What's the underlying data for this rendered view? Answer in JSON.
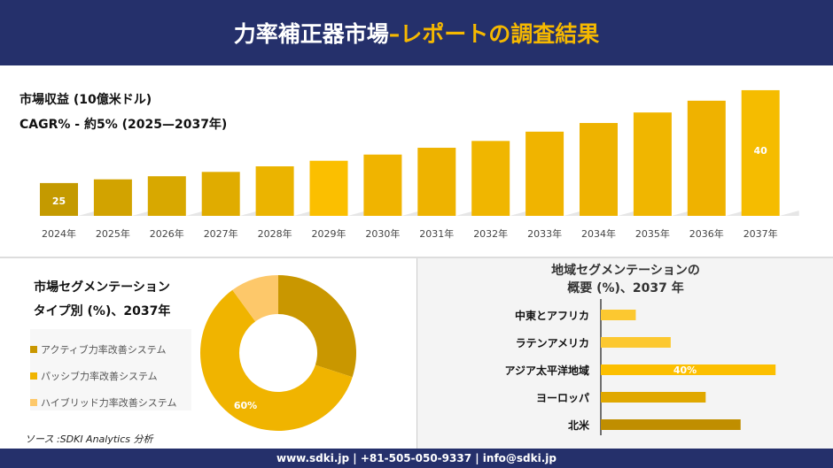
{
  "header": {
    "title_white": "力率補正器市場",
    "title_yellow": "–レポートの調査結果"
  },
  "market": {
    "line1": "市場収益 (10億米ドル)",
    "line2": "CAGR% - 約5% (2025—2037年)"
  },
  "chart_data": [
    {
      "type": "bar",
      "categories": [
        "2024年",
        "2025年",
        "2026年",
        "2027年",
        "2028年",
        "2029年",
        "2030年",
        "2031年",
        "2032年",
        "2033年",
        "2034年",
        "2035年",
        "2036年",
        "2037年"
      ],
      "values": [
        25,
        25.6,
        26.1,
        26.8,
        27.7,
        28.6,
        29.6,
        30.7,
        31.8,
        33.3,
        34.7,
        36.4,
        38.3,
        40
      ],
      "data_labels": {
        "0": "25",
        "13": "40"
      },
      "colors": [
        "#c49a00",
        "#d2a300",
        "#d8a800",
        "#e0ac00",
        "#ebb400",
        "#fbbf00",
        "#f0b400",
        "#eeb300",
        "#f0b600",
        "#f0b400",
        "#eeb300",
        "#f0b600",
        "#efb200",
        "#f5bc00"
      ]
    },
    {
      "type": "pie",
      "title": "市場セグメンテーション タイプ別 (%)、2037年",
      "labels": [
        "アクティブ力率改善システム",
        "パッシブ力率改善システム",
        "ハイブリッド力率改善システム"
      ],
      "values": [
        30,
        60,
        10
      ],
      "colors": [
        "#c99700",
        "#f0b400",
        "#fdc86a"
      ],
      "data_labels": {
        "1": "60%"
      }
    },
    {
      "type": "bar",
      "orientation": "horizontal",
      "title": "地域セグメンテーションの 概要 (%)、2037 年",
      "categories": [
        "中東とアフリカ",
        "ラテンアメリカ",
        "アジア太平洋地域",
        "ヨーロッパ",
        "北米"
      ],
      "values": [
        8,
        16,
        40,
        24,
        32
      ],
      "colors": [
        "#fcc830",
        "#fcc830",
        "#fcbf00",
        "#e0a800",
        "#c08e00"
      ],
      "data_labels": {
        "2": "40%"
      }
    }
  ],
  "segment": {
    "title1": "市場セグメンテーション",
    "title2": "タイプ別 (%)、2037年"
  },
  "region": {
    "title1": "地域セグメンテーションの",
    "title2": "概要 (%)、2037 年"
  },
  "source": "ソース :SDKI Analytics 分析",
  "footer": "www.sdki.jp | +81-505-050-9337 | info@sdki.jp"
}
